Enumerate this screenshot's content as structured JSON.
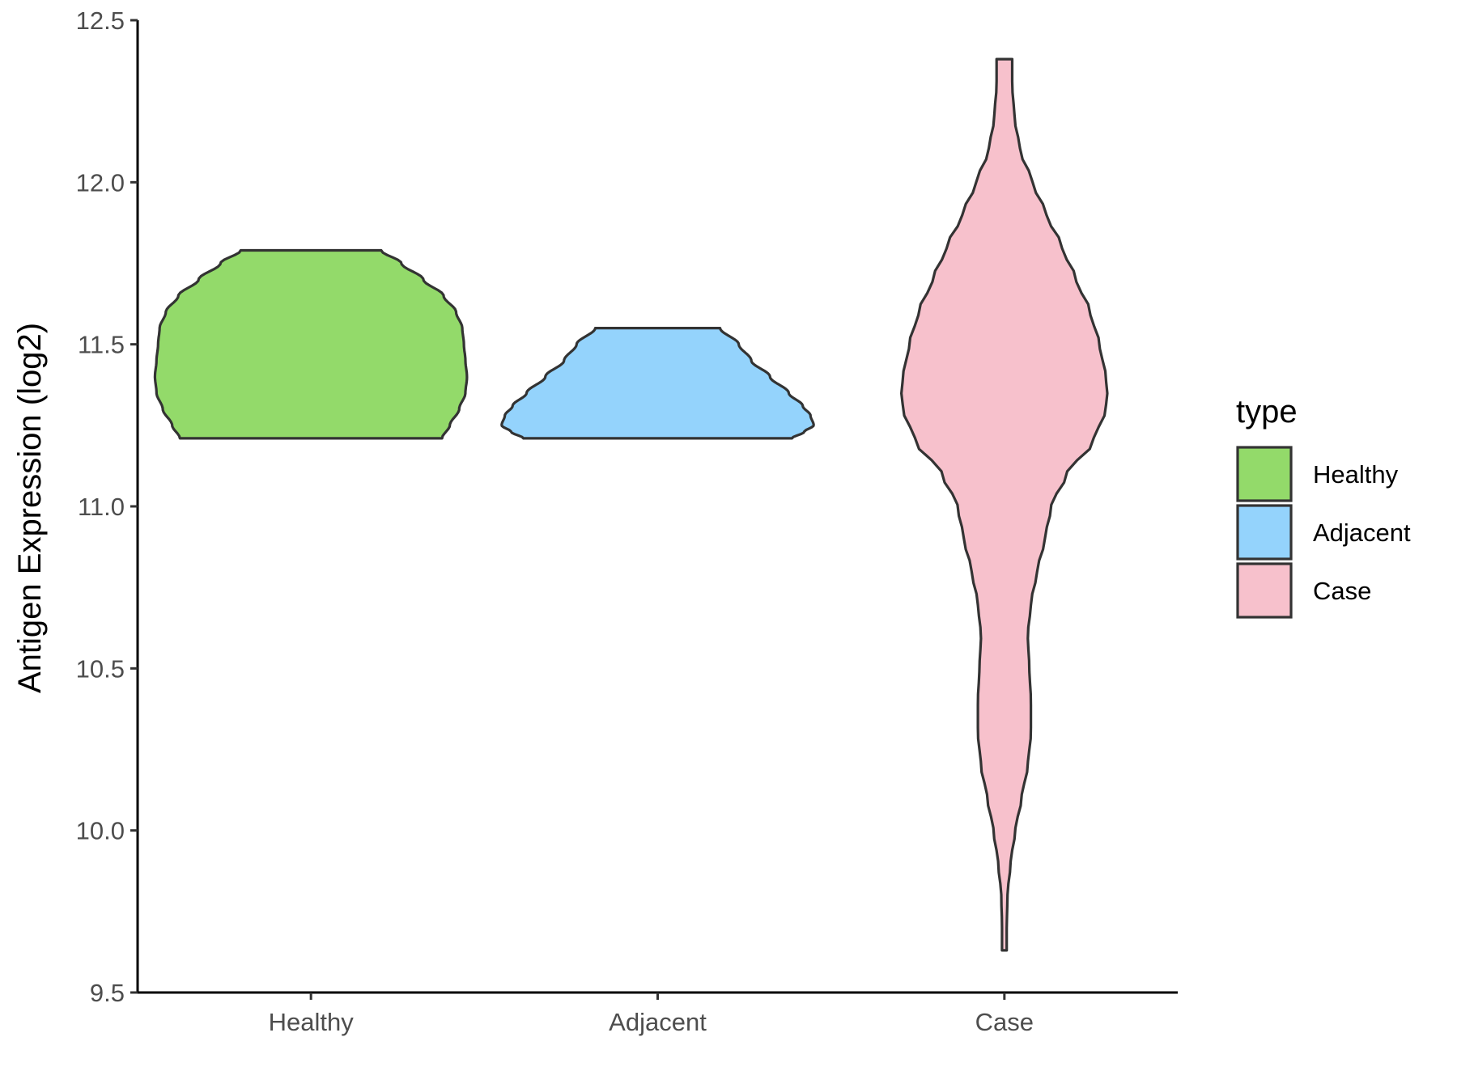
{
  "chart_data": {
    "type": "violin",
    "categories": [
      "Healthy",
      "Adjacent",
      "Case"
    ],
    "ylabel": "Antigen Expression (log2)",
    "xlabel": "",
    "ylim": [
      9.5,
      12.5
    ],
    "yticks": [
      "9.5",
      "10.0",
      "10.5",
      "11.0",
      "11.5",
      "12.0",
      "12.5"
    ],
    "grid": false,
    "legend": {
      "title": "type",
      "placement": "right",
      "entries": [
        "Healthy",
        "Adjacent",
        "Case"
      ]
    },
    "colors": {
      "Healthy": "#93da6a",
      "Adjacent": "#94d3fc",
      "Case": "#f7c1cc",
      "outline": "#333333"
    },
    "series": [
      {
        "name": "Healthy",
        "min": 11.21,
        "max": 11.79,
        "density_profile": [
          [
            11.21,
            0.84
          ],
          [
            11.25,
            0.89
          ],
          [
            11.3,
            0.95
          ],
          [
            11.35,
            0.99
          ],
          [
            11.4,
            1.0
          ],
          [
            11.45,
            0.99
          ],
          [
            11.5,
            0.98
          ],
          [
            11.55,
            0.97
          ],
          [
            11.6,
            0.93
          ],
          [
            11.65,
            0.85
          ],
          [
            11.7,
            0.72
          ],
          [
            11.75,
            0.58
          ],
          [
            11.79,
            0.45
          ]
        ]
      },
      {
        "name": "Adjacent",
        "min": 11.21,
        "max": 11.55,
        "density_profile": [
          [
            11.21,
            0.86
          ],
          [
            11.23,
            0.94
          ],
          [
            11.25,
            1.0
          ],
          [
            11.28,
            0.98
          ],
          [
            11.31,
            0.93
          ],
          [
            11.35,
            0.84
          ],
          [
            11.4,
            0.72
          ],
          [
            11.45,
            0.6
          ],
          [
            11.5,
            0.52
          ],
          [
            11.55,
            0.4
          ]
        ]
      },
      {
        "name": "Case",
        "min": 9.63,
        "max": 12.38,
        "density_profile": [
          [
            9.63,
            0.015
          ],
          [
            9.7,
            0.015
          ],
          [
            9.8,
            0.02
          ],
          [
            9.9,
            0.04
          ],
          [
            10.0,
            0.07
          ],
          [
            10.1,
            0.11
          ],
          [
            10.2,
            0.15
          ],
          [
            10.3,
            0.17
          ],
          [
            10.4,
            0.17
          ],
          [
            10.5,
            0.16
          ],
          [
            10.6,
            0.15
          ],
          [
            10.7,
            0.17
          ],
          [
            10.8,
            0.21
          ],
          [
            10.9,
            0.26
          ],
          [
            11.0,
            0.3
          ],
          [
            11.1,
            0.4
          ],
          [
            11.2,
            0.57
          ],
          [
            11.3,
            0.65
          ],
          [
            11.35,
            0.66
          ],
          [
            11.4,
            0.65
          ],
          [
            11.5,
            0.61
          ],
          [
            11.6,
            0.55
          ],
          [
            11.7,
            0.46
          ],
          [
            11.8,
            0.37
          ],
          [
            11.9,
            0.27
          ],
          [
            12.0,
            0.18
          ],
          [
            12.1,
            0.1
          ],
          [
            12.2,
            0.065
          ],
          [
            12.3,
            0.05
          ],
          [
            12.38,
            0.05
          ]
        ]
      }
    ]
  }
}
